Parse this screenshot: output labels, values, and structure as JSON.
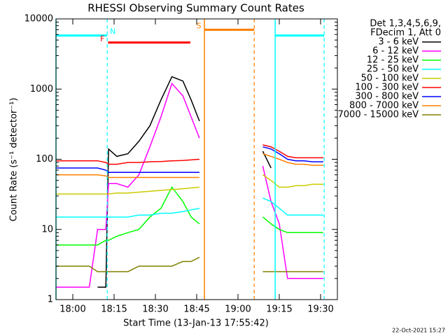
{
  "chart_data": {
    "type": "line",
    "title": "RHESSI Observing Summary Count Rates",
    "xlabel": "Start Time (13-Jan-13 17:55:42)",
    "ylabel": "Count Rate (s⁻¹ detector⁻¹)",
    "legend_header": [
      "Det 1,3,4,5,6,9,",
      "FDecim 1, Att 0"
    ],
    "footer": "22-Oct-2021 15:27",
    "log_y": true,
    "ylim": [
      1,
      10000
    ],
    "yticks": [
      1,
      10,
      100,
      1000,
      10000
    ],
    "xlim": [
      -6.1,
      96.1
    ],
    "xticks": [
      {
        "value": 0,
        "label": "18:00"
      },
      {
        "value": 15,
        "label": "18:15"
      },
      {
        "value": 30,
        "label": "18:30"
      },
      {
        "value": 45,
        "label": "18:45"
      },
      {
        "value": 60,
        "label": "19:00"
      },
      {
        "value": 75,
        "label": "19:15"
      },
      {
        "value": 90,
        "label": "19:30"
      }
    ],
    "x": [
      -6,
      -2,
      2,
      6,
      9,
      12,
      13,
      16,
      20,
      24,
      28,
      32,
      36,
      40,
      43,
      46,
      47,
      69,
      72,
      75,
      78,
      81,
      84,
      87,
      91
    ],
    "series": [
      {
        "name": "3 - 6 keV",
        "color": "#000000",
        "values": [
          null,
          null,
          null,
          null,
          1.5,
          1.5,
          140,
          110,
          120,
          180,
          300,
          700,
          1500,
          1300,
          700,
          350,
          null,
          130,
          75,
          null,
          null,
          null,
          null,
          null,
          null
        ]
      },
      {
        "name": "6 - 12 keV",
        "color": "#ff00ff",
        "values": [
          1.5,
          1.5,
          1.5,
          1.5,
          10,
          10,
          45,
          45,
          40,
          60,
          150,
          400,
          1200,
          800,
          400,
          200,
          null,
          80,
          25,
          12,
          2,
          2,
          2,
          2,
          2
        ]
      },
      {
        "name": "12 - 25 keV",
        "color": "#00ff00",
        "values": [
          6,
          6,
          6,
          6,
          6,
          7,
          7,
          8,
          9,
          10,
          15,
          20,
          40,
          25,
          15,
          12,
          null,
          15,
          12,
          10,
          9,
          9,
          9,
          9,
          9
        ]
      },
      {
        "name": "25 - 50 keV",
        "color": "#00ffff",
        "values": [
          15,
          15,
          15,
          15,
          15,
          15,
          15,
          15,
          15,
          16,
          16,
          17,
          17,
          18,
          19,
          20,
          null,
          28,
          25,
          20,
          16,
          16,
          16,
          16,
          16
        ]
      },
      {
        "name": "50 - 100 keV",
        "color": "#cccc00",
        "values": [
          32,
          32,
          32,
          32,
          32,
          32,
          32,
          33,
          33,
          34,
          35,
          36,
          37,
          38,
          39,
          40,
          null,
          60,
          50,
          40,
          40,
          42,
          42,
          44,
          44
        ]
      },
      {
        "name": "100 - 300 keV",
        "color": "#ff0000",
        "values": [
          95,
          95,
          95,
          95,
          95,
          90,
          85,
          85,
          90,
          90,
          92,
          93,
          95,
          96,
          98,
          100,
          null,
          160,
          150,
          130,
          110,
          105,
          105,
          105,
          105
        ]
      },
      {
        "name": "300 - 800 keV",
        "color": "#0000ff",
        "values": [
          75,
          75,
          75,
          75,
          75,
          70,
          65,
          65,
          65,
          65,
          65,
          65,
          65,
          65,
          65,
          65,
          null,
          150,
          140,
          120,
          100,
          95,
          95,
          92,
          92
        ]
      },
      {
        "name": "800 - 7000 keV",
        "color": "#ff8000",
        "values": [
          60,
          60,
          60,
          60,
          60,
          58,
          55,
          55,
          55,
          55,
          55,
          55,
          55,
          55,
          55,
          55,
          null,
          120,
          110,
          100,
          90,
          85,
          85,
          82,
          82
        ]
      },
      {
        "name": "7000 - 15000 keV",
        "color": "#808000",
        "values": [
          3,
          3,
          3,
          3,
          2.5,
          2.5,
          2.5,
          2.5,
          2.5,
          3,
          3,
          3,
          3,
          3.5,
          3.5,
          4,
          null,
          2.5,
          2.5,
          2.5,
          2.5,
          2.5,
          2.5,
          2.5,
          2.5
        ]
      }
    ],
    "flags": [
      {
        "label": "N",
        "color": "#00ffff",
        "level": 5800,
        "label_side": "end",
        "lines": true,
        "intervals": [
          [
            -6.1,
            12.5
          ],
          [
            73.5,
            91.3
          ]
        ]
      },
      {
        "label": "F",
        "color": "#ff0000",
        "level": 4600,
        "label_side": "start",
        "lines": false,
        "intervals": [
          [
            12.8,
            42.7
          ]
        ]
      },
      {
        "label": "S",
        "color": "#ff8000",
        "level": 7000,
        "label_side": "start",
        "lines": true,
        "intervals": [
          [
            47.8,
            65.9
          ]
        ]
      }
    ]
  }
}
